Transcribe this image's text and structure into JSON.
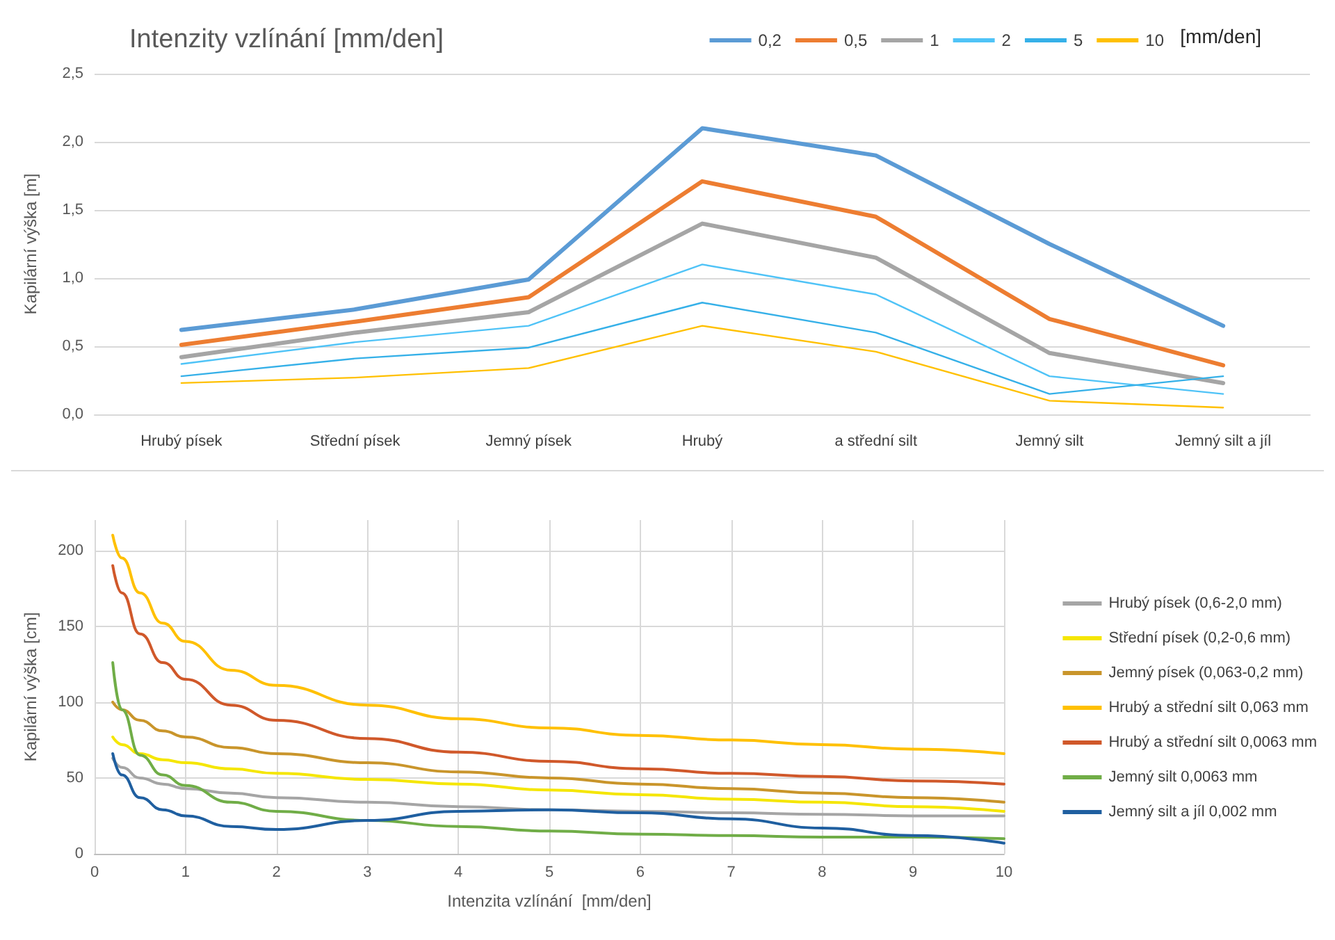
{
  "chart_data": [
    {
      "type": "line",
      "title": "Intenzity vzlínání [mm/den]",
      "ylabel": "Kapilární výška [m]",
      "legend_title": "[mm/den]",
      "legend": "top right",
      "grid": "y",
      "line_style": "solid",
      "marker": "none",
      "categories": [
        "Hrubý písek",
        "Střední písek",
        "Jemný písek",
        "Hrubý",
        "a střední silt",
        "Jemný silt",
        "Jemný silt a jíl"
      ],
      "ylim": [
        0,
        2.5
      ],
      "yticks": [
        {
          "value": 0,
          "label": "0,0"
        },
        {
          "value": 0.5,
          "label": "0,5"
        },
        {
          "value": 1,
          "label": "1,0"
        },
        {
          "value": 1.5,
          "label": "1,5"
        },
        {
          "value": 2,
          "label": "2,0"
        },
        {
          "value": 2.5,
          "label": "2,5"
        }
      ],
      "series": [
        {
          "name": "0,2",
          "color": "#5b9bd5",
          "values": [
            0.62,
            0.77,
            0.99,
            2.1,
            1.9,
            1.25,
            0.65
          ]
        },
        {
          "name": "0,5",
          "color": "#ed7d31",
          "values": [
            0.51,
            0.68,
            0.86,
            1.71,
            1.45,
            0.7,
            0.36
          ]
        },
        {
          "name": "1",
          "color": "#a5a5a5",
          "values": [
            0.42,
            0.6,
            0.75,
            1.4,
            1.15,
            0.45,
            0.23
          ]
        },
        {
          "name": "2",
          "color": "#4fc3f7",
          "values": [
            0.37,
            0.53,
            0.65,
            1.1,
            0.88,
            0.28,
            0.15
          ]
        },
        {
          "name": "5",
          "color": "#35b0e8",
          "values": [
            0.28,
            0.41,
            0.49,
            0.82,
            0.6,
            0.15,
            0.28
          ]
        },
        {
          "name": "10",
          "color": "#ffc000",
          "values": [
            0.23,
            0.27,
            0.34,
            0.65,
            0.46,
            0.1,
            0.05
          ]
        }
      ]
    },
    {
      "type": "line",
      "xlabel": "Intenzita vzlínání  [mm/den]",
      "ylabel": "Kapilární výška [cm]",
      "legend": "right",
      "grid": true,
      "line_style": "solid",
      "marker": "none",
      "x": [
        0.2,
        0.3,
        0.5,
        0.75,
        1,
        1.5,
        2,
        3,
        4,
        5,
        6,
        7,
        8,
        9,
        10
      ],
      "xlim": [
        0,
        10
      ],
      "xticks": [
        0,
        1,
        2,
        3,
        4,
        5,
        6,
        7,
        8,
        9,
        10
      ],
      "ylim": [
        0,
        220
      ],
      "yticks": [
        0,
        50,
        100,
        150,
        200
      ],
      "series": [
        {
          "name": "Hrubý písek (0,6-2,0 mm)",
          "color": "#a5a5a5",
          "values": [
            63,
            57,
            50,
            46,
            43,
            40,
            37,
            34,
            31,
            29,
            28,
            27,
            26,
            25,
            25
          ]
        },
        {
          "name": "Střední písek (0,2-0,6 mm)",
          "color": "#f5e600",
          "values": [
            77,
            72,
            66,
            62,
            60,
            56,
            53,
            49,
            46,
            42,
            39,
            36,
            34,
            31,
            28
          ]
        },
        {
          "name": "Jemný písek (0,063-0,2 mm)",
          "color": "#c9952b",
          "values": [
            100,
            95,
            88,
            81,
            77,
            70,
            66,
            60,
            54,
            50,
            46,
            43,
            40,
            37,
            34
          ]
        },
        {
          "name": "Hrubý a střední silt 0,063 mm",
          "color": "#ffc000",
          "values": [
            210,
            195,
            172,
            152,
            140,
            121,
            111,
            98,
            89,
            83,
            78,
            75,
            72,
            69,
            66
          ]
        },
        {
          "name": "Hrubý a střední silt 0,0063 mm",
          "color": "#d0582a",
          "values": [
            190,
            172,
            145,
            126,
            115,
            98,
            88,
            76,
            67,
            61,
            56,
            53,
            51,
            48,
            46
          ]
        },
        {
          "name": "Jemný silt 0,0063 mm",
          "color": "#70ad47",
          "values": [
            126,
            95,
            65,
            52,
            45,
            34,
            28,
            22,
            18,
            15,
            13,
            12,
            11,
            11,
            10
          ]
        },
        {
          "name": "Jemný silt a jíl 0,002 mm",
          "color": "#1f5fa0",
          "values": [
            66,
            52,
            37,
            29,
            25,
            18,
            16,
            22,
            28,
            29,
            27,
            23,
            17,
            12,
            7
          ]
        }
      ]
    }
  ]
}
